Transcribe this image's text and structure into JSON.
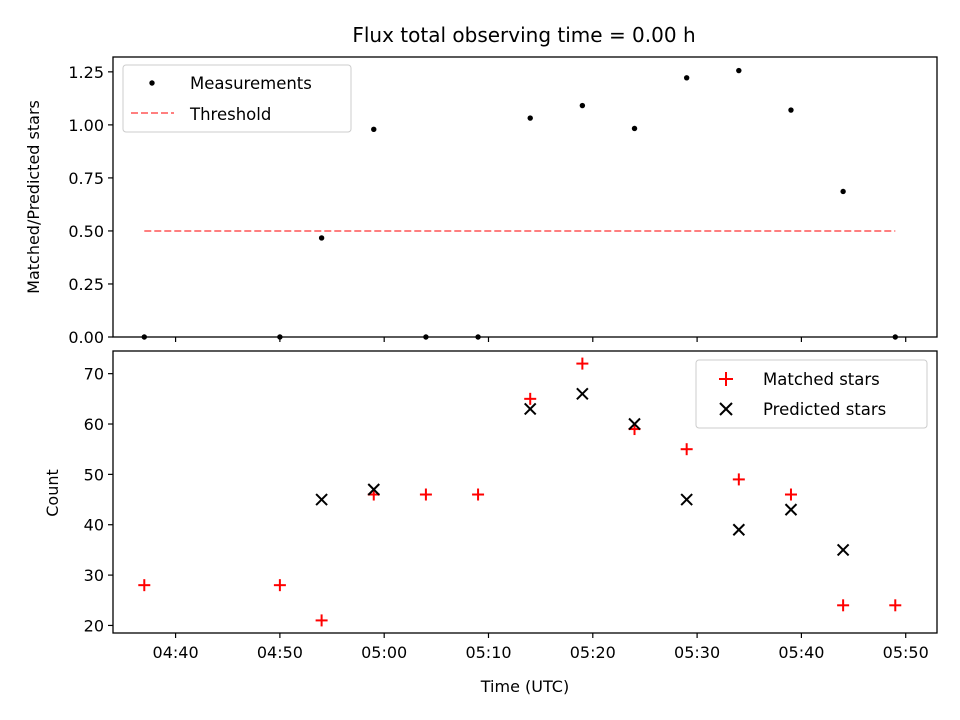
{
  "chart_data": [
    {
      "type": "scatter",
      "title": "Flux total observing time = 0.00 h",
      "xlabel": "",
      "ylabel": "Matched/Predicted stars",
      "ylim": [
        0,
        1.32
      ],
      "yticks": [
        0.0,
        0.25,
        0.5,
        0.75,
        1.0,
        1.25
      ],
      "ytick_labels": [
        "0.00",
        "0.25",
        "0.50",
        "0.75",
        "1.00",
        "1.25"
      ],
      "legend_position": "top-left",
      "series": [
        {
          "name": "Measurements",
          "marker": "dot",
          "color": "#000000",
          "x": [
            "04:37",
            "04:50",
            "04:54",
            "04:59",
            "05:04",
            "05:09",
            "05:14",
            "05:19",
            "05:24",
            "05:29",
            "05:34",
            "05:39",
            "05:44",
            "05:49"
          ],
          "values": [
            0.0,
            0.0,
            0.467,
            0.979,
            0.0,
            0.0,
            1.032,
            1.091,
            0.983,
            1.222,
            1.256,
            1.07,
            0.686,
            0.0
          ]
        },
        {
          "name": "Threshold",
          "marker": "dashed-line",
          "color": "#ff7f7f",
          "x": [
            "04:37",
            "05:49"
          ],
          "values": [
            0.5,
            0.5
          ]
        }
      ]
    },
    {
      "type": "scatter",
      "title": "",
      "xlabel": "Time (UTC)",
      "ylabel": "Count",
      "ylim": [
        18.5,
        74.5
      ],
      "yticks": [
        20,
        30,
        40,
        50,
        60,
        70
      ],
      "ytick_labels": [
        "20",
        "30",
        "40",
        "50",
        "60",
        "70"
      ],
      "xlim": [
        "04:34",
        "05:53"
      ],
      "xticks": [
        "04:40",
        "04:50",
        "05:00",
        "05:10",
        "05:20",
        "05:30",
        "05:40",
        "05:50"
      ],
      "legend_position": "top-right",
      "series": [
        {
          "name": "Matched stars",
          "marker": "+",
          "color": "#ff0000",
          "x": [
            "04:37",
            "04:50",
            "04:54",
            "04:59",
            "05:04",
            "05:09",
            "05:14",
            "05:19",
            "05:24",
            "05:29",
            "05:34",
            "05:39",
            "05:44",
            "05:49"
          ],
          "values": [
            28,
            28,
            21,
            46,
            46,
            46,
            65,
            72,
            59,
            55,
            49,
            46,
            24,
            24
          ]
        },
        {
          "name": "Predicted stars",
          "marker": "x",
          "color": "#000000",
          "x": [
            "04:54",
            "04:59",
            "05:14",
            "05:19",
            "05:24",
            "05:29",
            "05:34",
            "05:39",
            "05:44"
          ],
          "values": [
            45,
            47,
            63,
            66,
            60,
            45,
            39,
            43,
            35
          ]
        }
      ]
    }
  ]
}
